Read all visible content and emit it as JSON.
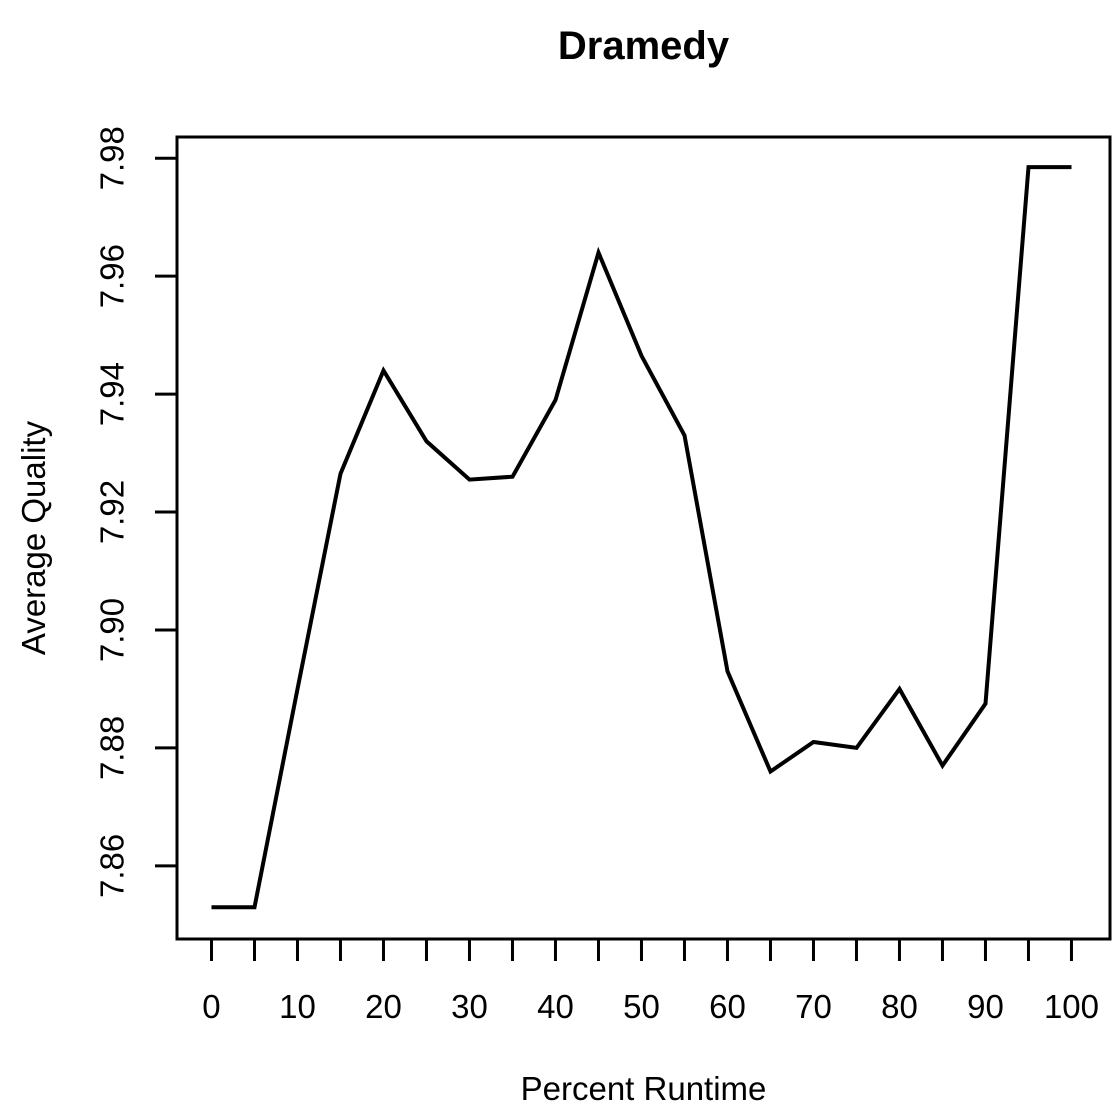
{
  "chart_data": {
    "type": "line",
    "title": "Dramedy",
    "xlabel": "Percent Runtime",
    "ylabel": "Average Quality",
    "x": [
      0,
      5,
      10,
      15,
      20,
      25,
      30,
      35,
      40,
      45,
      50,
      55,
      60,
      65,
      70,
      75,
      80,
      85,
      90,
      95,
      100
    ],
    "values": [
      7.853,
      7.853,
      7.89,
      7.9265,
      7.944,
      7.932,
      7.9255,
      7.926,
      7.939,
      7.964,
      7.9465,
      7.933,
      7.893,
      7.876,
      7.881,
      7.88,
      7.89,
      7.877,
      7.8875,
      7.9785,
      7.9785
    ],
    "xlim": [
      -4.01,
      104.48
    ],
    "ylim": [
      7.8476,
      7.9836
    ],
    "x_ticks": [
      0,
      5,
      10,
      15,
      20,
      25,
      30,
      35,
      40,
      45,
      50,
      55,
      60,
      65,
      70,
      75,
      80,
      85,
      90,
      95,
      100
    ],
    "x_tick_labels_at": [
      0,
      10,
      20,
      30,
      40,
      50,
      60,
      70,
      80,
      90,
      100
    ],
    "y_ticks": [
      7.86,
      7.88,
      7.9,
      7.92,
      7.94,
      7.96,
      7.98
    ],
    "y_tick_decimals": 2,
    "line_color": "#000000",
    "axis_color": "#000000",
    "background_color": "#ffffff",
    "grid": false,
    "legend": null
  }
}
